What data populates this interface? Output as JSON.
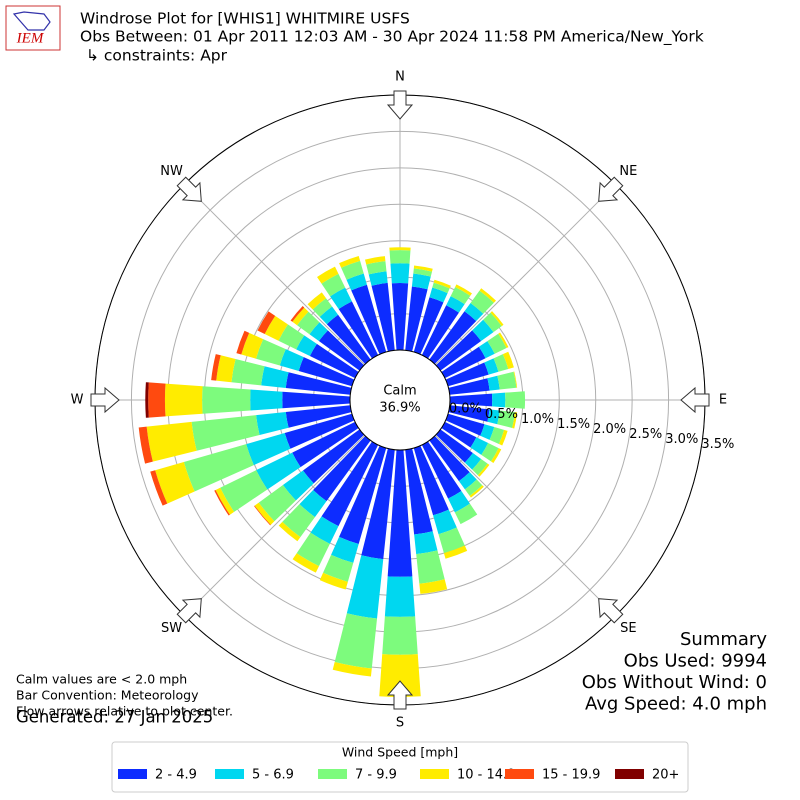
{
  "chart_data": {
    "type": "windrose",
    "logo_text": "IEM",
    "title": "Windrose Plot for [WHIS1] WHITMIRE USFS",
    "subtitle": "Obs Between: 01 Apr 2011 12:03 AM - 30 Apr 2024 11:58 PM America/New_York",
    "constraints": "↳ constraints: Apr",
    "compass_labels": [
      "N",
      "NE",
      "E",
      "SE",
      "S",
      "SW",
      "W",
      "NW"
    ],
    "calm_label": "Calm",
    "calm_value": "36.9%",
    "x": [
      0,
      10,
      20,
      30,
      40,
      50,
      60,
      70,
      80,
      90,
      100,
      110,
      120,
      130,
      140,
      150,
      160,
      170,
      180,
      190,
      200,
      210,
      220,
      230,
      240,
      250,
      260,
      270,
      280,
      290,
      300,
      310,
      320,
      330,
      340,
      350
    ],
    "rlim": [
      0,
      3.5
    ],
    "rticks": [
      {
        "value": 0,
        "label": "0.0%"
      },
      {
        "value": 0.5,
        "label": "0.5%"
      },
      {
        "value": 1,
        "label": "1.0%"
      },
      {
        "value": 1.5,
        "label": "1.5%"
      },
      {
        "value": 2,
        "label": "2.0%"
      },
      {
        "value": 2.5,
        "label": "2.5%"
      },
      {
        "value": 3,
        "label": "3.0%"
      },
      {
        "value": 3.5,
        "label": "3.5%"
      }
    ],
    "grid": true,
    "legend_title": "Wind Speed [mph]",
    "series": [
      {
        "name": "2 - 4.9",
        "color": "#0d2cff",
        "values": [
          0.92,
          0.88,
          0.78,
          0.76,
          0.82,
          0.69,
          0.62,
          0.58,
          0.55,
          0.58,
          0.55,
          0.52,
          0.48,
          0.55,
          0.69,
          0.82,
          0.96,
          1.17,
          1.74,
          1.51,
          1.37,
          1.24,
          1.03,
          0.96,
          0.96,
          0.96,
          0.89,
          0.93,
          0.89,
          0.76,
          0.69,
          0.69,
          0.76,
          0.82,
          0.96,
          0.93
        ]
      },
      {
        "name": "5 - 6.9",
        "color": "#00d7f0",
        "values": [
          0.27,
          0.18,
          0.14,
          0.14,
          0.14,
          0.21,
          0.14,
          0.14,
          0.14,
          0.18,
          0.14,
          0.14,
          0.18,
          0.14,
          0.14,
          0.21,
          0.27,
          0.27,
          0.55,
          0.82,
          0.27,
          0.27,
          0.27,
          0.34,
          0.55,
          0.55,
          0.41,
          0.44,
          0.34,
          0.27,
          0.21,
          0.16,
          0.14,
          0.21,
          0.16,
          0.16
        ]
      },
      {
        "name": "7 - 9.9",
        "color": "#7dfb7d",
        "values": [
          0.18,
          0.07,
          0.07,
          0.14,
          0.21,
          0.14,
          0.18,
          0.14,
          0.23,
          0.27,
          0.21,
          0.14,
          0.16,
          0.11,
          0.11,
          0.18,
          0.27,
          0.41,
          0.52,
          0.69,
          0.27,
          0.34,
          0.34,
          0.41,
          0.55,
          0.89,
          0.89,
          0.66,
          0.41,
          0.34,
          0.27,
          0.21,
          0.14,
          0.21,
          0.18,
          0.14
        ]
      },
      {
        "name": "10 - 14.9",
        "color": "#ffec00",
        "values": [
          0.04,
          0.04,
          0.04,
          0.04,
          0.04,
          0.03,
          0.03,
          0.08,
          0.01,
          0,
          0.03,
          0.05,
          0.04,
          0.03,
          0.03,
          0,
          0.08,
          0.14,
          0.58,
          0.11,
          0.11,
          0.1,
          0.07,
          0.07,
          0.07,
          0.41,
          0.62,
          0.51,
          0.21,
          0.21,
          0.21,
          0.08,
          0.1,
          0.11,
          0.07,
          0.07
        ]
      },
      {
        "name": "15 - 19.9",
        "color": "#ff4a0f",
        "values": [
          0,
          0,
          0,
          0,
          0,
          0,
          0,
          0,
          0,
          0,
          0,
          0,
          0,
          0,
          0,
          0,
          0,
          0,
          0,
          0,
          0,
          0,
          0,
          0.01,
          0.02,
          0.07,
          0.11,
          0.23,
          0.07,
          0.07,
          0.11,
          0.03,
          0,
          0,
          0,
          0
        ]
      },
      {
        "name": "20+",
        "color": "#800000",
        "values": [
          0,
          0,
          0,
          0,
          0,
          0,
          0,
          0,
          0,
          0,
          0,
          0,
          0,
          0,
          0,
          0,
          0,
          0,
          0,
          0,
          0,
          0,
          0,
          0,
          0,
          0,
          0,
          0.04,
          0,
          0,
          0,
          0,
          0,
          0,
          0,
          0
        ]
      }
    ],
    "summary": [
      "Summary",
      "Obs Used: 9994",
      "Obs Without Wind: 0",
      "Avg Speed: 4.0 mph"
    ],
    "notes": [
      "Calm values are < 2.0 mph",
      "Bar Convention: Meteorology",
      "Flow arrows relative to plot center."
    ],
    "generated": "Generated: 27 Jan 2025"
  }
}
